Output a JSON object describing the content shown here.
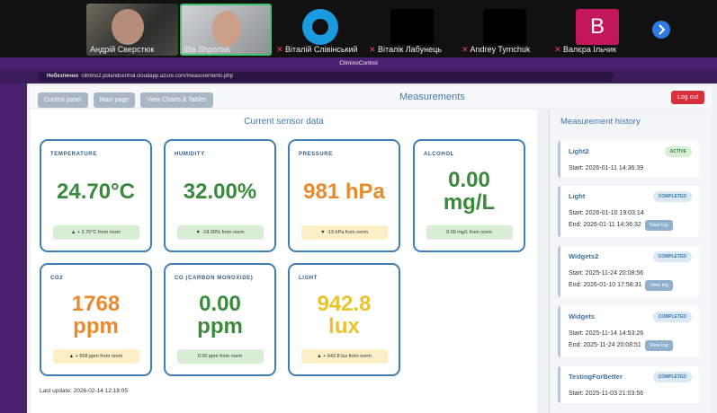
{
  "call": {
    "participants": [
      {
        "name": "Андрій Сверстюк"
      },
      {
        "name": "Illia Shportak"
      },
      {
        "name": "Віталій Слівінський"
      },
      {
        "name": "Віталік Лабунець"
      },
      {
        "name": "Andrey Tymchuk"
      },
      {
        "name": "Валєра Ільчик",
        "initial": "B"
      }
    ]
  },
  "browser": {
    "window_title": "CliminoControl",
    "security": "Небезпечно",
    "url": "climino2.polandcentral.cloudapp.azure.com/measurements.php"
  },
  "header": {
    "buttons": [
      "Control panel",
      "Main page",
      "View Charts & Tables"
    ],
    "title": "Measurements",
    "logout": "Log out"
  },
  "sensors": {
    "title": "Current sensor data",
    "cards": [
      {
        "label": "TEMPERATURE",
        "value": "24.70°C",
        "delta": "▲ + 2.70°C from norm",
        "color": "#3a8a3c",
        "badge_color": "#d8efd6"
      },
      {
        "label": "HUMIDITY",
        "value": "32.00%",
        "delta": "▼ -18.00% from norm",
        "color": "#3a8a3c",
        "badge_color": "#d8efd6"
      },
      {
        "label": "PRESSURE",
        "value": "981 hPa",
        "delta": "▼ -19 hPa from norm",
        "color": "#e98a2e",
        "badge_color": "#fcefc6"
      },
      {
        "label": "ALCOHOL",
        "value": "0.00 mg/L",
        "delta": "0.00 mg/L from norm",
        "color": "#3a8a3c",
        "badge_color": "#d8efd6"
      },
      {
        "label": "CO2",
        "value": "1768 ppm",
        "delta": "▲ + 668 ppm from norm",
        "color": "#e98a2e",
        "badge_color": "#fcefc6"
      },
      {
        "label": "CO (CARBON MONOXIDE)",
        "value": "0.00 ppm",
        "delta": "0.00 ppm from norm",
        "color": "#3a8a3c",
        "badge_color": "#d8efd6"
      },
      {
        "label": "LIGHT",
        "value": "942.8 lux",
        "delta": "▲ + 642.8 lux from norm",
        "color": "#e8c430",
        "badge_color": "#fcefc6"
      }
    ],
    "last_update": "Last update: 2026-02-14 12:18:05"
  },
  "history": {
    "title": "Measurement history",
    "items": [
      {
        "name": "Light2",
        "status": "ACTIVE",
        "start": "Start: 2026-01-11 14:36:39"
      },
      {
        "name": "Light",
        "status": "COMPLETED",
        "start": "Start: 2026-01-10 19:03:14",
        "end": "End: 2026-01-11 14:36:32",
        "action": "View log"
      },
      {
        "name": "Widgets2",
        "status": "COMPLETED",
        "start": "Start: 2025-11-24 20:08:56",
        "end": "End: 2026-01-10 17:58:31",
        "action": "View log"
      },
      {
        "name": "Widgets",
        "status": "COMPLETED",
        "start": "Start: 2025-11-14 14:53:26",
        "end": "End: 2025-11-24 20:08:51",
        "action": "View log"
      },
      {
        "name": "TestingForBetter",
        "status": "COMPLETED",
        "start": "Start: 2025-11-03 21:03:56"
      }
    ]
  }
}
